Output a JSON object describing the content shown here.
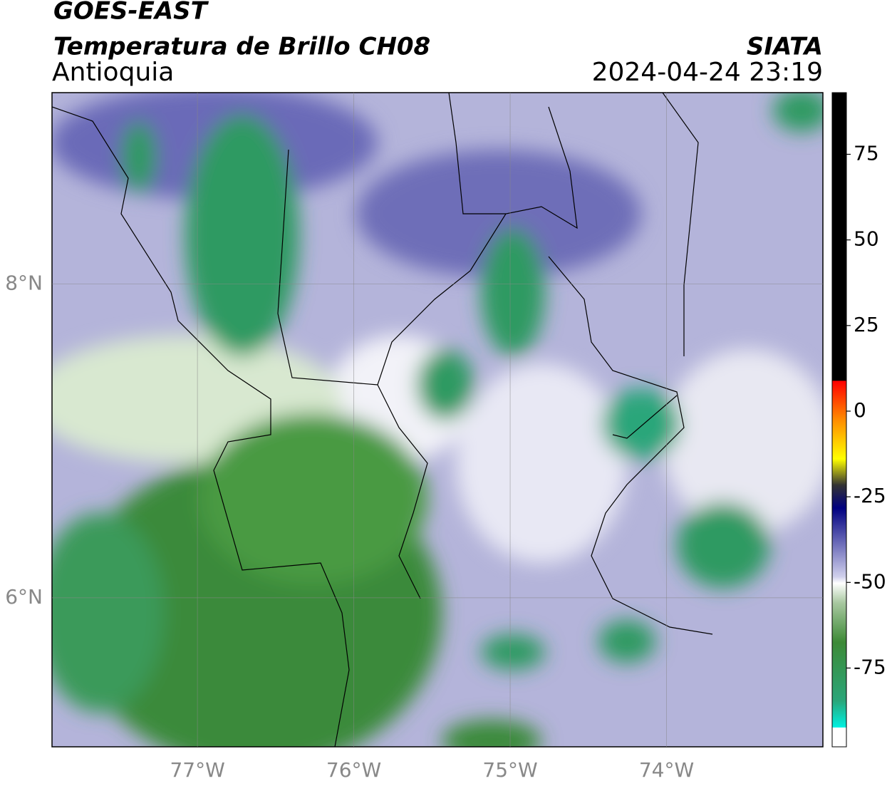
{
  "map": {
    "title": "GOES-EAST",
    "subtitle": "Temperatura de Brillo CH08",
    "region": "Antioquia",
    "source": "SIATA",
    "timestamp": "2024-04-24 23:19",
    "lonlim": [
      -77.93,
      -73.0
    ],
    "latlim": [
      5.05,
      9.22
    ],
    "lonticks": [
      {
        "value": -77,
        "label": "77°W"
      },
      {
        "value": -76,
        "label": "76°W"
      },
      {
        "value": -75,
        "label": "75°W"
      },
      {
        "value": -74,
        "label": "74°W"
      }
    ],
    "latticks": [
      {
        "value": 8,
        "label": "8°N"
      },
      {
        "value": 6,
        "label": "6°N"
      }
    ],
    "colorbar": {
      "lim": [
        -98,
        93
      ],
      "ticks": [
        75,
        50,
        25,
        0,
        -25,
        -50,
        -75
      ]
    }
  }
}
